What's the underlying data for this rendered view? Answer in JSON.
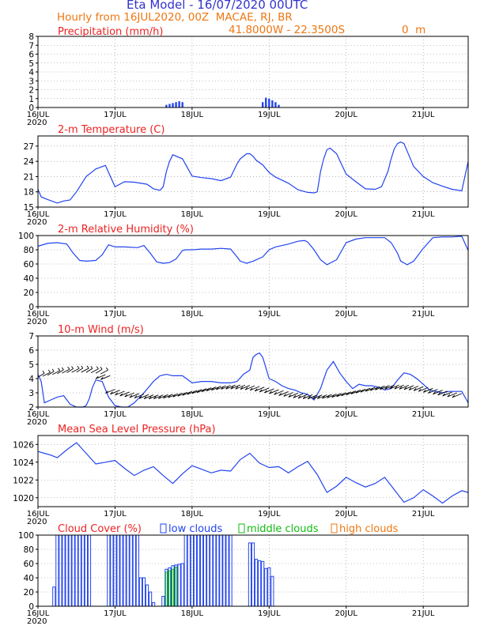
{
  "header": {
    "title": "Eta Model - 16/07/2020 00UTC",
    "subtitle": "Hourly from 16JUL2020, 00Z  MACAE, RJ, BR",
    "coords": "41.8000W - 22.3500S",
    "elevation": "0  m"
  },
  "colors": {
    "title": "#3333cc",
    "orange": "#ee7711",
    "red": "#ee2222",
    "line": "#2244ee",
    "green": "#11bb11",
    "grid": "#888888"
  },
  "x_axis": {
    "ticks": [
      {
        "hour": 0,
        "label": "16JUL"
      },
      {
        "hour": 24,
        "label": "17JUL"
      },
      {
        "hour": 48,
        "label": "18JUL"
      },
      {
        "hour": 72,
        "label": "19JUL"
      },
      {
        "hour": 96,
        "label": "20JUL"
      },
      {
        "hour": 120,
        "label": "21JUL"
      }
    ],
    "year_label": "2020",
    "xlim": [
      0,
      134
    ]
  },
  "legend": {
    "low": "low clouds",
    "middle": "middle clouds",
    "high": "high clouds"
  },
  "chart_data": [
    {
      "type": "bar",
      "title": "Precipitation (mm/h)",
      "ylim": [
        0,
        8
      ],
      "yticks": [
        0,
        1,
        2,
        3,
        4,
        5,
        6,
        7,
        8
      ],
      "x": [
        40,
        41,
        42,
        43,
        44,
        45,
        70,
        71,
        72,
        73,
        74,
        75
      ],
      "values": [
        0.3,
        0.4,
        0.5,
        0.6,
        0.7,
        0.6,
        0.6,
        1.1,
        1.0,
        0.8,
        0.6,
        0.3
      ]
    },
    {
      "type": "line",
      "title": "2-m Temperature (C)",
      "ylim": [
        15,
        29
      ],
      "yticks": [
        15,
        18,
        21,
        24,
        27
      ],
      "x": [
        0,
        1,
        3,
        6,
        8,
        10,
        12,
        15,
        18,
        21,
        24,
        27,
        30,
        34,
        36,
        38,
        39,
        40,
        41,
        42,
        45,
        48,
        51,
        54,
        57,
        60,
        62,
        63,
        65,
        66,
        67,
        68,
        70,
        72,
        74,
        78,
        81,
        84,
        86,
        87,
        88,
        89,
        90,
        91,
        93,
        96,
        99,
        102,
        105,
        107,
        109,
        110,
        111,
        112,
        113,
        114,
        115,
        117,
        120,
        123,
        126,
        129,
        132,
        134
      ],
      "values": [
        18.5,
        17,
        16.5,
        15.8,
        16.2,
        16.4,
        18,
        21,
        22.5,
        23.2,
        19,
        20,
        19.9,
        19.5,
        18.6,
        18.3,
        19,
        22,
        24,
        25.3,
        24.5,
        21.1,
        20.8,
        20.6,
        20.2,
        20.9,
        23.5,
        24.5,
        25.5,
        25.5,
        25,
        24.2,
        23.3,
        21.8,
        20.9,
        19.7,
        18.4,
        17.9,
        17.8,
        18,
        22,
        24.5,
        26.3,
        26.6,
        25.5,
        21.5,
        20,
        18.6,
        18.5,
        19,
        22,
        24.5,
        26.5,
        27.5,
        27.8,
        27.5,
        26,
        23,
        21,
        19.8,
        19.1,
        18.5,
        18.2,
        24
      ]
    },
    {
      "type": "line",
      "title": "2-m Relative Humidity (%)",
      "ylim": [
        0,
        100
      ],
      "yticks": [
        0,
        20,
        40,
        60,
        80,
        100
      ],
      "x": [
        0,
        3,
        6,
        9,
        11,
        13,
        15,
        18,
        20,
        22,
        24,
        27,
        31,
        33,
        35,
        37,
        39,
        41,
        43,
        45,
        46,
        48,
        51,
        54,
        57,
        60,
        62,
        63,
        65,
        67,
        70,
        72,
        74,
        78,
        81,
        83,
        84,
        86,
        88,
        90,
        93,
        96,
        99,
        102,
        105,
        108,
        110,
        112,
        113,
        115,
        117,
        120,
        123,
        126,
        129,
        132,
        134
      ],
      "values": [
        85,
        89,
        90,
        88,
        75,
        65,
        64,
        65,
        73,
        87,
        84,
        84,
        83,
        86,
        75,
        63,
        61,
        62,
        67,
        79,
        80,
        80,
        81,
        81,
        82,
        81,
        70,
        64,
        61,
        64,
        70,
        80,
        84,
        88,
        92,
        93,
        91,
        80,
        66,
        59,
        66,
        90,
        95,
        97,
        97,
        97,
        90,
        75,
        64,
        59,
        64,
        82,
        97,
        98,
        98,
        99,
        79
      ]
    },
    {
      "type": "line",
      "title": "10-m Wind (m/s)",
      "ylim": [
        2,
        7
      ],
      "yticks": [
        2,
        3,
        4,
        5,
        6,
        7
      ],
      "x": [
        0,
        1,
        2,
        4,
        6,
        8,
        10,
        12,
        14,
        15,
        16,
        17,
        18,
        20,
        22,
        24,
        26,
        28,
        30,
        33,
        36,
        38,
        40,
        42,
        45,
        48,
        51,
        54,
        57,
        60,
        62,
        64,
        66,
        67,
        68,
        69,
        70,
        72,
        74,
        76,
        78,
        80,
        82,
        84,
        86,
        88,
        90,
        92,
        94,
        96,
        98,
        100,
        102,
        104,
        106,
        108,
        110,
        112,
        114,
        116,
        118,
        120,
        122,
        124,
        126,
        128,
        130,
        132,
        134
      ],
      "values": [
        4.3,
        3.8,
        2.3,
        2.5,
        2.7,
        2.8,
        2.2,
        2,
        2,
        2.1,
        2.6,
        3.4,
        3.9,
        3.8,
        2.7,
        2.1,
        2,
        2,
        2.3,
        3,
        3.8,
        4.2,
        4.3,
        4.2,
        4.2,
        3.7,
        3.8,
        3.8,
        3.7,
        3.7,
        3.8,
        4.3,
        4.6,
        5.5,
        5.7,
        5.8,
        5.5,
        4,
        3.8,
        3.5,
        3.3,
        3.2,
        3,
        2.9,
        2.5,
        3.3,
        4.6,
        5.2,
        4.4,
        3.8,
        3.3,
        3.6,
        3.5,
        3.5,
        3.4,
        3.2,
        3.3,
        3.9,
        4.4,
        4.3,
        4,
        3.6,
        3.2,
        3.1,
        3,
        3.1,
        3.1,
        3.1,
        2.3
      ]
    },
    {
      "type": "line",
      "title": "Mean Sea Level Pressure (hPa)",
      "ylim": [
        1019,
        1027
      ],
      "yticks": [
        1020,
        1022,
        1024,
        1026
      ],
      "x": [
        0,
        2,
        4,
        6,
        9,
        12,
        15,
        18,
        21,
        24,
        27,
        30,
        33,
        36,
        39,
        42,
        45,
        48,
        51,
        54,
        57,
        60,
        63,
        66,
        69,
        72,
        75,
        78,
        81,
        84,
        87,
        90,
        93,
        96,
        99,
        102,
        105,
        108,
        111,
        114,
        117,
        120,
        123,
        126,
        129,
        132,
        134
      ],
      "values": [
        1025.2,
        1025,
        1024.8,
        1024.5,
        1025.4,
        1026.2,
        1025,
        1023.8,
        1024,
        1024.2,
        1023.3,
        1022.5,
        1023.1,
        1023.5,
        1022.5,
        1021.6,
        1022.7,
        1023.6,
        1023.2,
        1022.8,
        1023.1,
        1023,
        1024.3,
        1025,
        1023.9,
        1023.4,
        1023.5,
        1022.8,
        1023.5,
        1024.1,
        1022.6,
        1020.6,
        1021.3,
        1022.3,
        1021.7,
        1021.2,
        1021.6,
        1022.3,
        1020.9,
        1019.5,
        1020,
        1020.9,
        1020.2,
        1019.4,
        1020.2,
        1020.8,
        1020.6
      ]
    },
    {
      "type": "bar",
      "title": "Cloud Cover (%)",
      "ylim": [
        0,
        100
      ],
      "yticks": [
        0,
        20,
        40,
        60,
        80,
        100
      ],
      "series": [
        {
          "name": "low clouds",
          "x": [
            5,
            6,
            7,
            8,
            9,
            10,
            11,
            12,
            13,
            14,
            15,
            16,
            22,
            23,
            24,
            25,
            26,
            27,
            28,
            29,
            30,
            31,
            32,
            33,
            34,
            35,
            36,
            39,
            40,
            41,
            42,
            43,
            44,
            45,
            46,
            47,
            48,
            49,
            50,
            51,
            52,
            53,
            54,
            55,
            56,
            57,
            58,
            59,
            60,
            66,
            67,
            68,
            69,
            70,
            71,
            72,
            73
          ],
          "values": [
            27,
            100,
            100,
            100,
            100,
            100,
            100,
            100,
            100,
            100,
            100,
            100,
            100,
            100,
            100,
            100,
            100,
            100,
            100,
            100,
            100,
            100,
            40,
            40,
            30,
            20,
            5,
            14,
            52,
            54,
            57,
            58,
            59,
            60,
            100,
            100,
            100,
            100,
            100,
            100,
            100,
            100,
            100,
            100,
            100,
            100,
            100,
            100,
            100,
            89,
            89,
            66,
            64,
            63,
            53,
            54,
            42
          ]
        },
        {
          "name": "middle clouds",
          "x": [
            40,
            41,
            42,
            43
          ],
          "values": [
            48,
            50,
            52,
            55
          ]
        },
        {
          "name": "high clouds",
          "x": [],
          "values": []
        }
      ]
    }
  ]
}
